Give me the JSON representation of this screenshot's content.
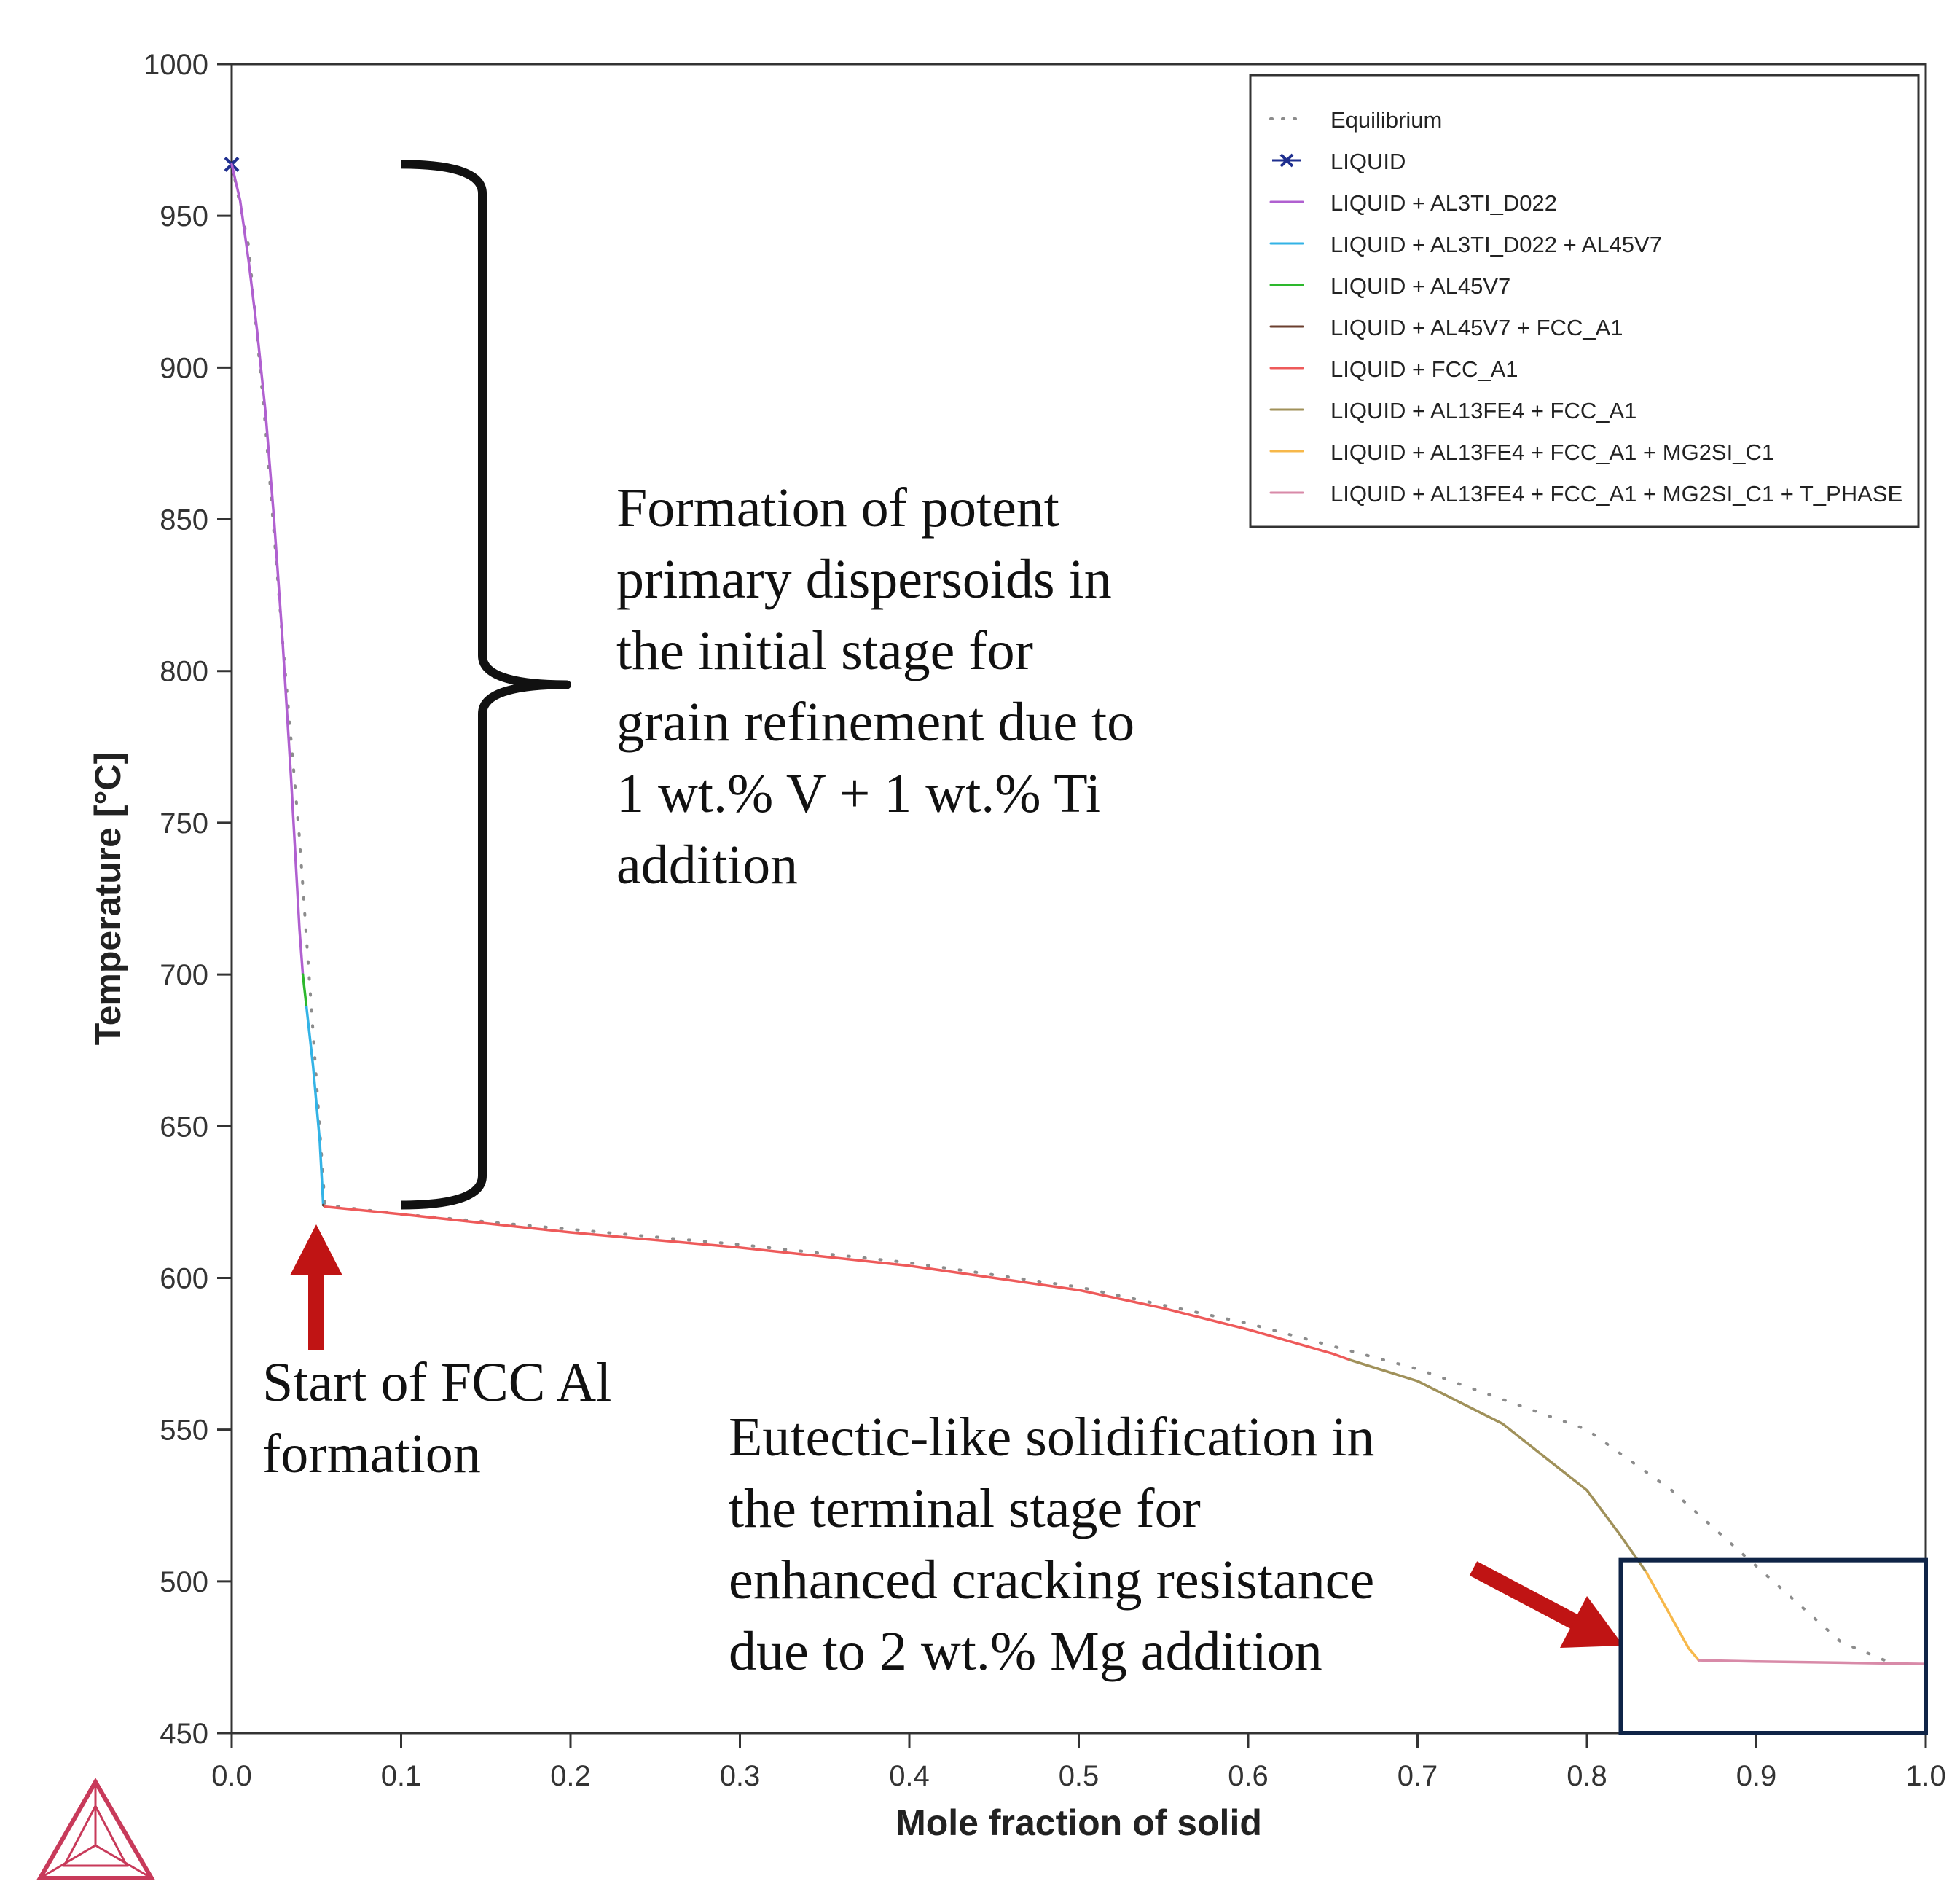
{
  "chart_data": {
    "type": "line",
    "title": "",
    "xlabel": "Mole fraction of solid",
    "ylabel": "Temperature [°C]",
    "xlim": [
      0.0,
      1.0
    ],
    "ylim": [
      450,
      1000
    ],
    "xticks": [
      0.0,
      0.1,
      0.2,
      0.3,
      0.4,
      0.5,
      0.6,
      0.7,
      0.8,
      0.9,
      1.0
    ],
    "xtick_labels": [
      "0.0",
      "0.1",
      "0.2",
      "0.3",
      "0.4",
      "0.5",
      "0.6",
      "0.7",
      "0.8",
      "0.9",
      "1.0"
    ],
    "yticks": [
      450,
      500,
      550,
      600,
      650,
      700,
      750,
      800,
      850,
      900,
      950,
      1000
    ],
    "ytick_labels": [
      "450",
      "500",
      "550",
      "600",
      "650",
      "700",
      "750",
      "800",
      "850",
      "900",
      "950",
      "1000"
    ],
    "grid": false,
    "legend_position": "top-right",
    "series": [
      {
        "name": "Equilibrium",
        "color": "#8c8c8c",
        "style": "dotted",
        "x": [
          0.0,
          0.01,
          0.02,
          0.03,
          0.04,
          0.05,
          0.055,
          0.1,
          0.2,
          0.3,
          0.4,
          0.5,
          0.6,
          0.7,
          0.8,
          0.85,
          0.9,
          0.95,
          0.98
        ],
        "y": [
          967,
          940,
          880,
          810,
          745,
          665,
          624,
          621,
          616,
          611,
          605,
          597,
          585,
          570,
          550,
          530,
          505,
          480,
          473
        ]
      },
      {
        "name": "LIQUID",
        "color": "#1f2f8f",
        "style": "marker",
        "x": [
          0.0
        ],
        "y": [
          967
        ]
      },
      {
        "name": "LIQUID + AL3TI_D022",
        "color": "#b060d0",
        "style": "solid",
        "x": [
          0.0,
          0.005,
          0.01,
          0.015,
          0.02,
          0.025,
          0.03,
          0.035,
          0.04,
          0.042
        ],
        "y": [
          967,
          955,
          935,
          912,
          885,
          850,
          810,
          765,
          715,
          700
        ]
      },
      {
        "name": "LIQUID + AL3TI_D022 + AL45V7",
        "color": "#33b3e6",
        "style": "solid",
        "x": [
          0.044,
          0.048,
          0.052,
          0.054
        ],
        "y": [
          690,
          670,
          645,
          624
        ]
      },
      {
        "name": "LIQUID + AL45V7",
        "color": "#2db82d",
        "style": "solid",
        "x": [
          0.042,
          0.044
        ],
        "y": [
          700,
          690
        ]
      },
      {
        "name": "LIQUID + AL45V7 + FCC_A1",
        "color": "#6b3f2f",
        "style": "solid",
        "x": [
          0.054,
          0.055
        ],
        "y": [
          624,
          623.5
        ]
      },
      {
        "name": "LIQUID + FCC_A1",
        "color": "#ee5a5a",
        "style": "solid",
        "x": [
          0.055,
          0.1,
          0.2,
          0.3,
          0.4,
          0.5,
          0.55,
          0.6,
          0.65,
          0.66
        ],
        "y": [
          623.5,
          621,
          615,
          610,
          604,
          596,
          590,
          583,
          575,
          573
        ]
      },
      {
        "name": "LIQUID + AL13FE4 + FCC_A1",
        "color": "#a0915a",
        "style": "solid",
        "x": [
          0.66,
          0.7,
          0.75,
          0.8,
          0.82,
          0.835
        ],
        "y": [
          573,
          566,
          552,
          530,
          515,
          503
        ]
      },
      {
        "name": "LIQUID + AL13FE4 + FCC_A1 + MG2SI_C1",
        "color": "#f7b84a",
        "style": "solid",
        "x": [
          0.835,
          0.85,
          0.86,
          0.866
        ],
        "y": [
          503,
          488,
          478,
          474
        ]
      },
      {
        "name": "LIQUID + AL13FE4 + FCC_A1 + MG2SI_C1 + T_PHASE",
        "color": "#d88aa8",
        "style": "solid",
        "x": [
          0.866,
          0.9,
          0.95,
          1.0
        ],
        "y": [
          474,
          473.6,
          473.2,
          472.8
        ]
      }
    ],
    "annotations": [
      {
        "id": "dispersoids",
        "lines": [
          "Formation of potent",
          "primary dispersoids in",
          "the initial stage for",
          "grain refinement due to",
          "1 wt.% V + 1 wt.% Ti",
          "addition"
        ]
      },
      {
        "id": "fcc-start",
        "lines": [
          "Start of FCC Al",
          "formation"
        ]
      },
      {
        "id": "eutectic",
        "lines": [
          "Eutectic-like solidification in",
          "the terminal stage for",
          "enhanced cracking resistance",
          "due to 2 wt.% Mg addition"
        ]
      }
    ],
    "brace_range": [
      624,
      967
    ],
    "highlight_box": {
      "x": [
        0.82,
        1.0
      ],
      "y": [
        450,
        507
      ]
    }
  },
  "colors": {
    "axis": "#333333",
    "arrow": "#c01414",
    "box": "#0f2447",
    "logo": "#c83a5a"
  },
  "logo": {
    "icon": "triangle-logo-icon"
  }
}
